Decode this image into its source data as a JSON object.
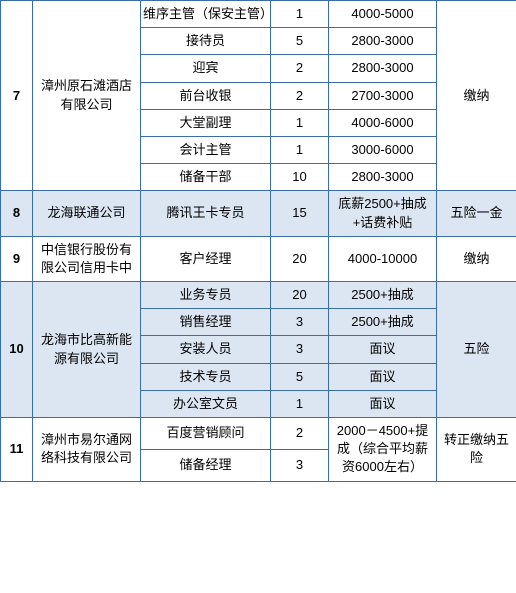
{
  "table": {
    "border_color": "#3a6ea5",
    "bg_even": "#dce6f2",
    "bg_odd": "#ffffff",
    "font_size": 13,
    "rows": [
      {
        "idx": "7",
        "company": "漳州原石滩酒店有限公司",
        "benefit": "缴纳",
        "jobs": [
          {
            "position": "维序主管（保安主管）",
            "count": "1",
            "salary": "4000-5000"
          },
          {
            "position": "接待员",
            "count": "5",
            "salary": "2800-3000"
          },
          {
            "position": "迎宾",
            "count": "2",
            "salary": "2800-3000"
          },
          {
            "position": "前台收银",
            "count": "2",
            "salary": "2700-3000"
          },
          {
            "position": "大堂副理",
            "count": "1",
            "salary": "4000-6000"
          },
          {
            "position": "会计主管",
            "count": "1",
            "salary": "3000-6000"
          },
          {
            "position": "储备干部",
            "count": "10",
            "salary": "2800-3000"
          }
        ],
        "parity": "odd"
      },
      {
        "idx": "8",
        "company": "龙海联通公司",
        "benefit": "五险一金",
        "jobs": [
          {
            "position": "腾讯王卡专员",
            "count": "15",
            "salary": "底薪2500+抽成+话费补贴"
          }
        ],
        "parity": "even"
      },
      {
        "idx": "9",
        "company": "中信银行股份有限公司信用卡中",
        "benefit": "缴纳",
        "jobs": [
          {
            "position": "客户经理",
            "count": "20",
            "salary": "4000-10000"
          }
        ],
        "parity": "odd"
      },
      {
        "idx": "10",
        "company": "龙海市比高新能源有限公司",
        "benefit": "五险",
        "jobs": [
          {
            "position": "业务专员",
            "count": "20",
            "salary": "2500+抽成"
          },
          {
            "position": "销售经理",
            "count": "3",
            "salary": "2500+抽成"
          },
          {
            "position": "安装人员",
            "count": "3",
            "salary": "面议"
          },
          {
            "position": "技术专员",
            "count": "5",
            "salary": "面议"
          },
          {
            "position": "办公室文员",
            "count": "1",
            "salary": "面议"
          }
        ],
        "parity": "even"
      },
      {
        "idx": "11",
        "company": "漳州市易尔通网络科技有限公司",
        "benefit": "转正缴纳五险",
        "salary_merged": "2000－4500+提成（综合平均薪资6000左右）",
        "jobs": [
          {
            "position": "百度营销顾问",
            "count": "2"
          },
          {
            "position": "储备经理",
            "count": "3"
          }
        ],
        "parity": "odd"
      }
    ]
  }
}
